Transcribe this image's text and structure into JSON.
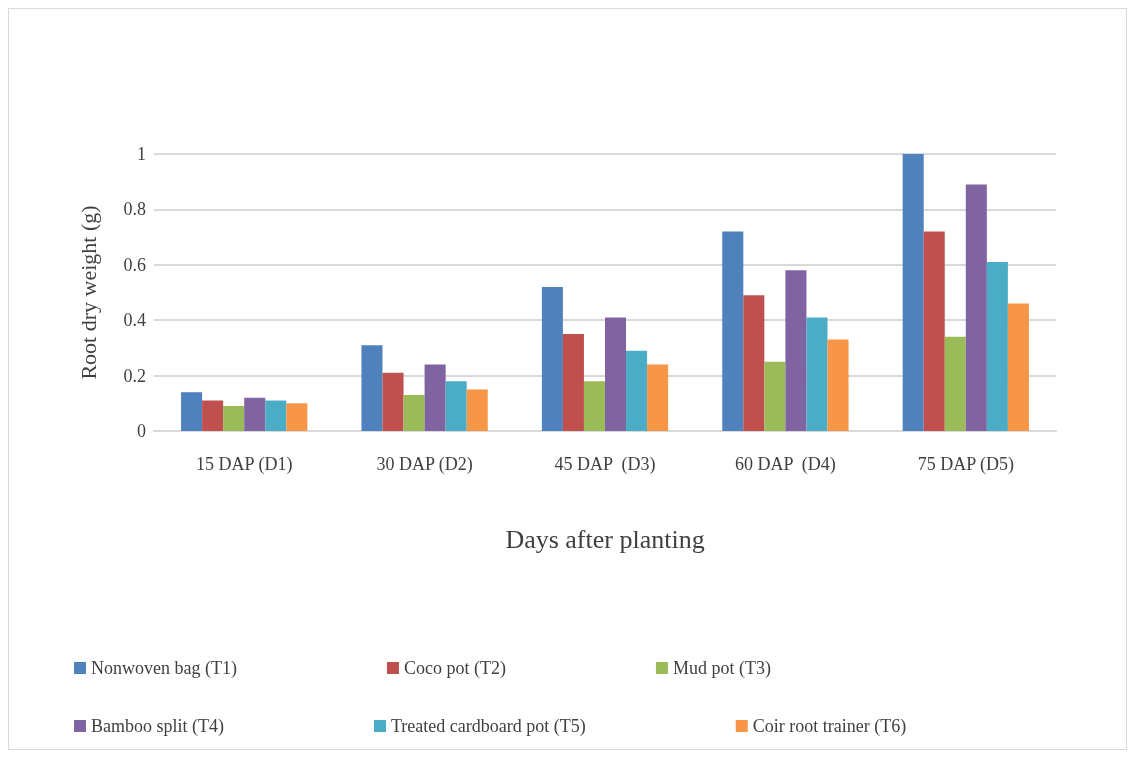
{
  "chart_data": {
    "type": "bar",
    "xlabel": "Days after planting",
    "ylabel": "Root dry weight (g)",
    "categories": [
      "15 DAP (D1)",
      "30 DAP (D2)",
      "45 DAP  (D3)",
      "60 DAP  (D4)",
      "75 DAP (D5)"
    ],
    "series": [
      {
        "name": "Nonwoven bag (T1)",
        "color": "#4f81bd",
        "values": [
          0.14,
          0.31,
          0.52,
          0.72,
          1.0
        ]
      },
      {
        "name": "Coco pot (T2)",
        "color": "#c0504d",
        "values": [
          0.11,
          0.21,
          0.35,
          0.49,
          0.72
        ]
      },
      {
        "name": "Mud pot (T3)",
        "color": "#9bbb59",
        "values": [
          0.09,
          0.13,
          0.18,
          0.25,
          0.34
        ]
      },
      {
        "name": "Bamboo split (T4)",
        "color": "#8064a2",
        "values": [
          0.12,
          0.24,
          0.41,
          0.58,
          0.89
        ]
      },
      {
        "name": "Treated cardboard pot (T5)",
        "color": "#4bacc6",
        "values": [
          0.11,
          0.18,
          0.29,
          0.41,
          0.61
        ]
      },
      {
        "name": "Coir root trainer (T6)",
        "color": "#f79646",
        "values": [
          0.1,
          0.15,
          0.24,
          0.33,
          0.46
        ]
      }
    ],
    "ylim": [
      0,
      1
    ],
    "yticks": [
      0,
      0.2,
      0.4,
      0.6,
      0.8,
      1
    ],
    "grid": "y",
    "legend": "bottom"
  }
}
